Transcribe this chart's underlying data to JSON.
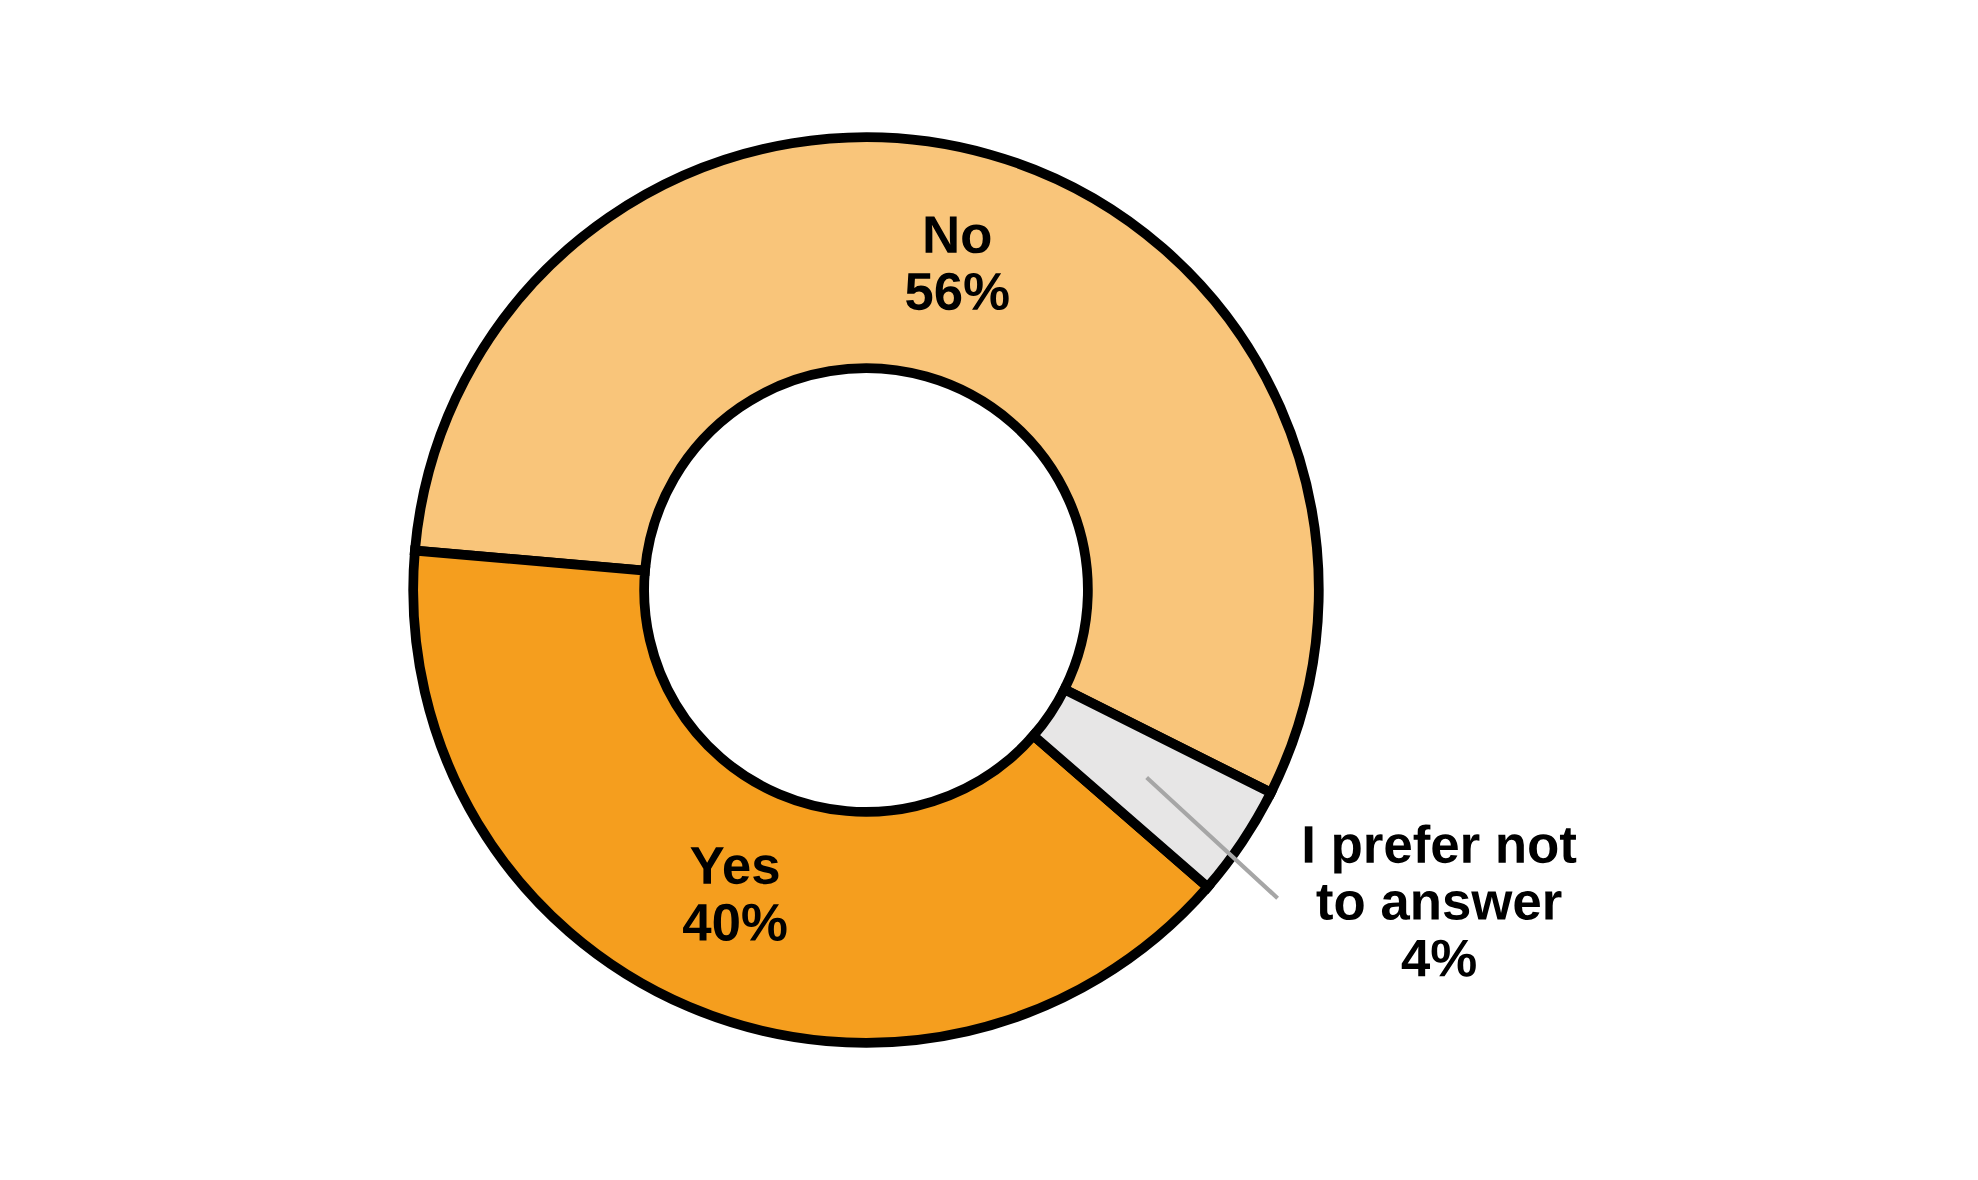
{
  "chart_data": {
    "type": "donut",
    "categories": [
      "No",
      "Yes",
      "I prefer not\nto answer"
    ],
    "values": [
      56,
      40,
      4
    ],
    "value_labels": [
      "56%",
      "40%",
      "4%"
    ],
    "colors": [
      "#f9c57a",
      "#f59e1e",
      "#e7e6e6"
    ],
    "legend": false
  }
}
